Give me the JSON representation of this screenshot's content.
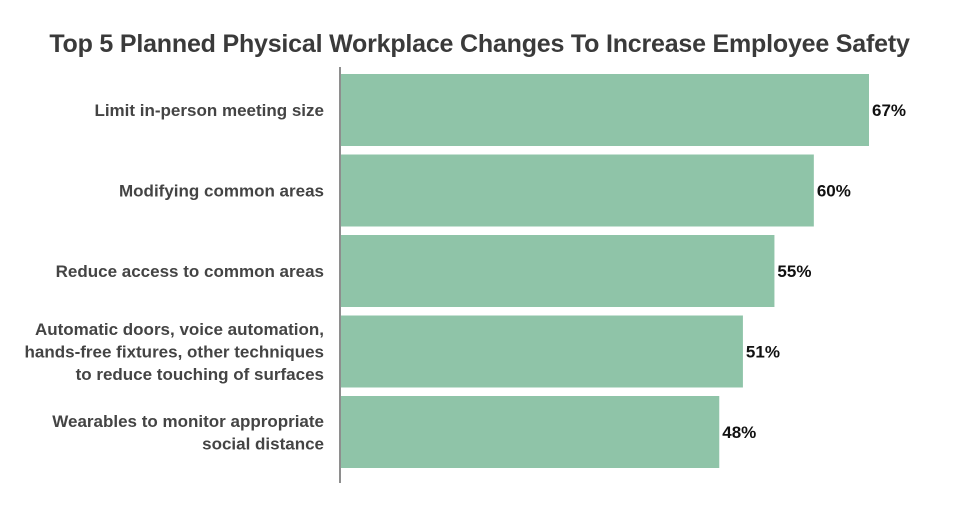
{
  "chart_data": {
    "type": "bar",
    "orientation": "horizontal",
    "title": "Top 5 Planned Physical Workplace Changes To Increase Employee Safety",
    "categories": [
      "Limit in-person meeting size",
      "Modifying common areas",
      "Reduce access to common areas",
      "Automatic doors, voice automation, hands-free fixtures, other techniques to reduce touching of surfaces",
      "Wearables to monitor appropriate social distance"
    ],
    "category_lines": [
      [
        "Limit in-person meeting size"
      ],
      [
        "Modifying common areas"
      ],
      [
        "Reduce access to common areas"
      ],
      [
        "Automatic doors, voice automation,",
        "hands-free fixtures, other techniques",
        "to reduce touching of surfaces"
      ],
      [
        "Wearables to monitor appropriate",
        "social distance"
      ]
    ],
    "values": [
      67,
      60,
      55,
      51,
      48
    ],
    "value_labels": [
      "67%",
      "60%",
      "55%",
      "51%",
      "48%"
    ],
    "xlim": [
      0,
      67
    ],
    "xlabel": "",
    "ylabel": "",
    "grid": false,
    "bar_color": "#8fc4a8"
  }
}
